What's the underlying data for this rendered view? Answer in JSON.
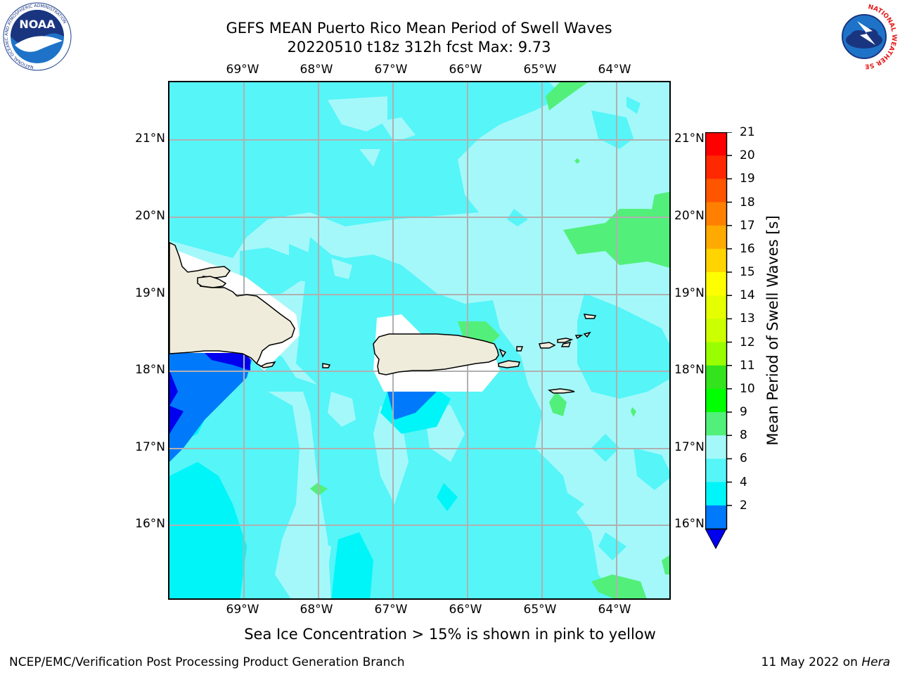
{
  "title": {
    "line1": "GEFS MEAN Puerto Rico Mean Period of Swell Waves",
    "line2": "20220510 t18z 312h fcst    Max: 9.73"
  },
  "map": {
    "region": "Puerto Rico",
    "lon_ticks": [
      "69°W",
      "68°W",
      "67°W",
      "66°W",
      "65°W",
      "64°W"
    ],
    "lat_ticks": [
      "21°N",
      "20°N",
      "19°N",
      "18°N",
      "17°N",
      "16°N"
    ],
    "extent": {
      "lon_min": -70.0,
      "lon_max": -63.25,
      "lat_min": 15.0,
      "lat_max": 21.75
    },
    "land_color": "#efecdc",
    "grid_color": "#b0b0b0"
  },
  "colorbar": {
    "label": "Mean Period of Swell Waves [s]",
    "ticks": [
      "21",
      "20",
      "19",
      "18",
      "17",
      "16",
      "15",
      "14",
      "13",
      "12",
      "11",
      "10",
      "9",
      "8",
      "6",
      "4",
      "2"
    ],
    "colors_top_to_bottom": [
      "#ff0000",
      "#ff2800",
      "#ff5500",
      "#ff8000",
      "#ffaa00",
      "#ffd400",
      "#ffff00",
      "#e6ff00",
      "#ccff00",
      "#99ff00",
      "#33e31e",
      "#00ff00",
      "#52f07a",
      "#a4f8fa",
      "#55f5f8",
      "#00f5f8",
      "#0079fa"
    ],
    "under_color": "#0000ee"
  },
  "footer": {
    "note": "Sea Ice Concentration > 15% is shown in pink to yellow",
    "credit_left": "NCEP/EMC/Verification Post Processing Product Generation Branch",
    "date": "11 May 2022 on ",
    "machine": "Hera"
  },
  "logos": {
    "noaa_text": "NOAA",
    "noaa_ring": "NATIONAL OCEANIC AND ATMOSPHERIC ADMINISTRATION",
    "noaa_ring_bottom": "U.S. DEPARTMENT OF COMMERCE",
    "nws_ring": "NATIONAL WEATHER SERVICE"
  }
}
